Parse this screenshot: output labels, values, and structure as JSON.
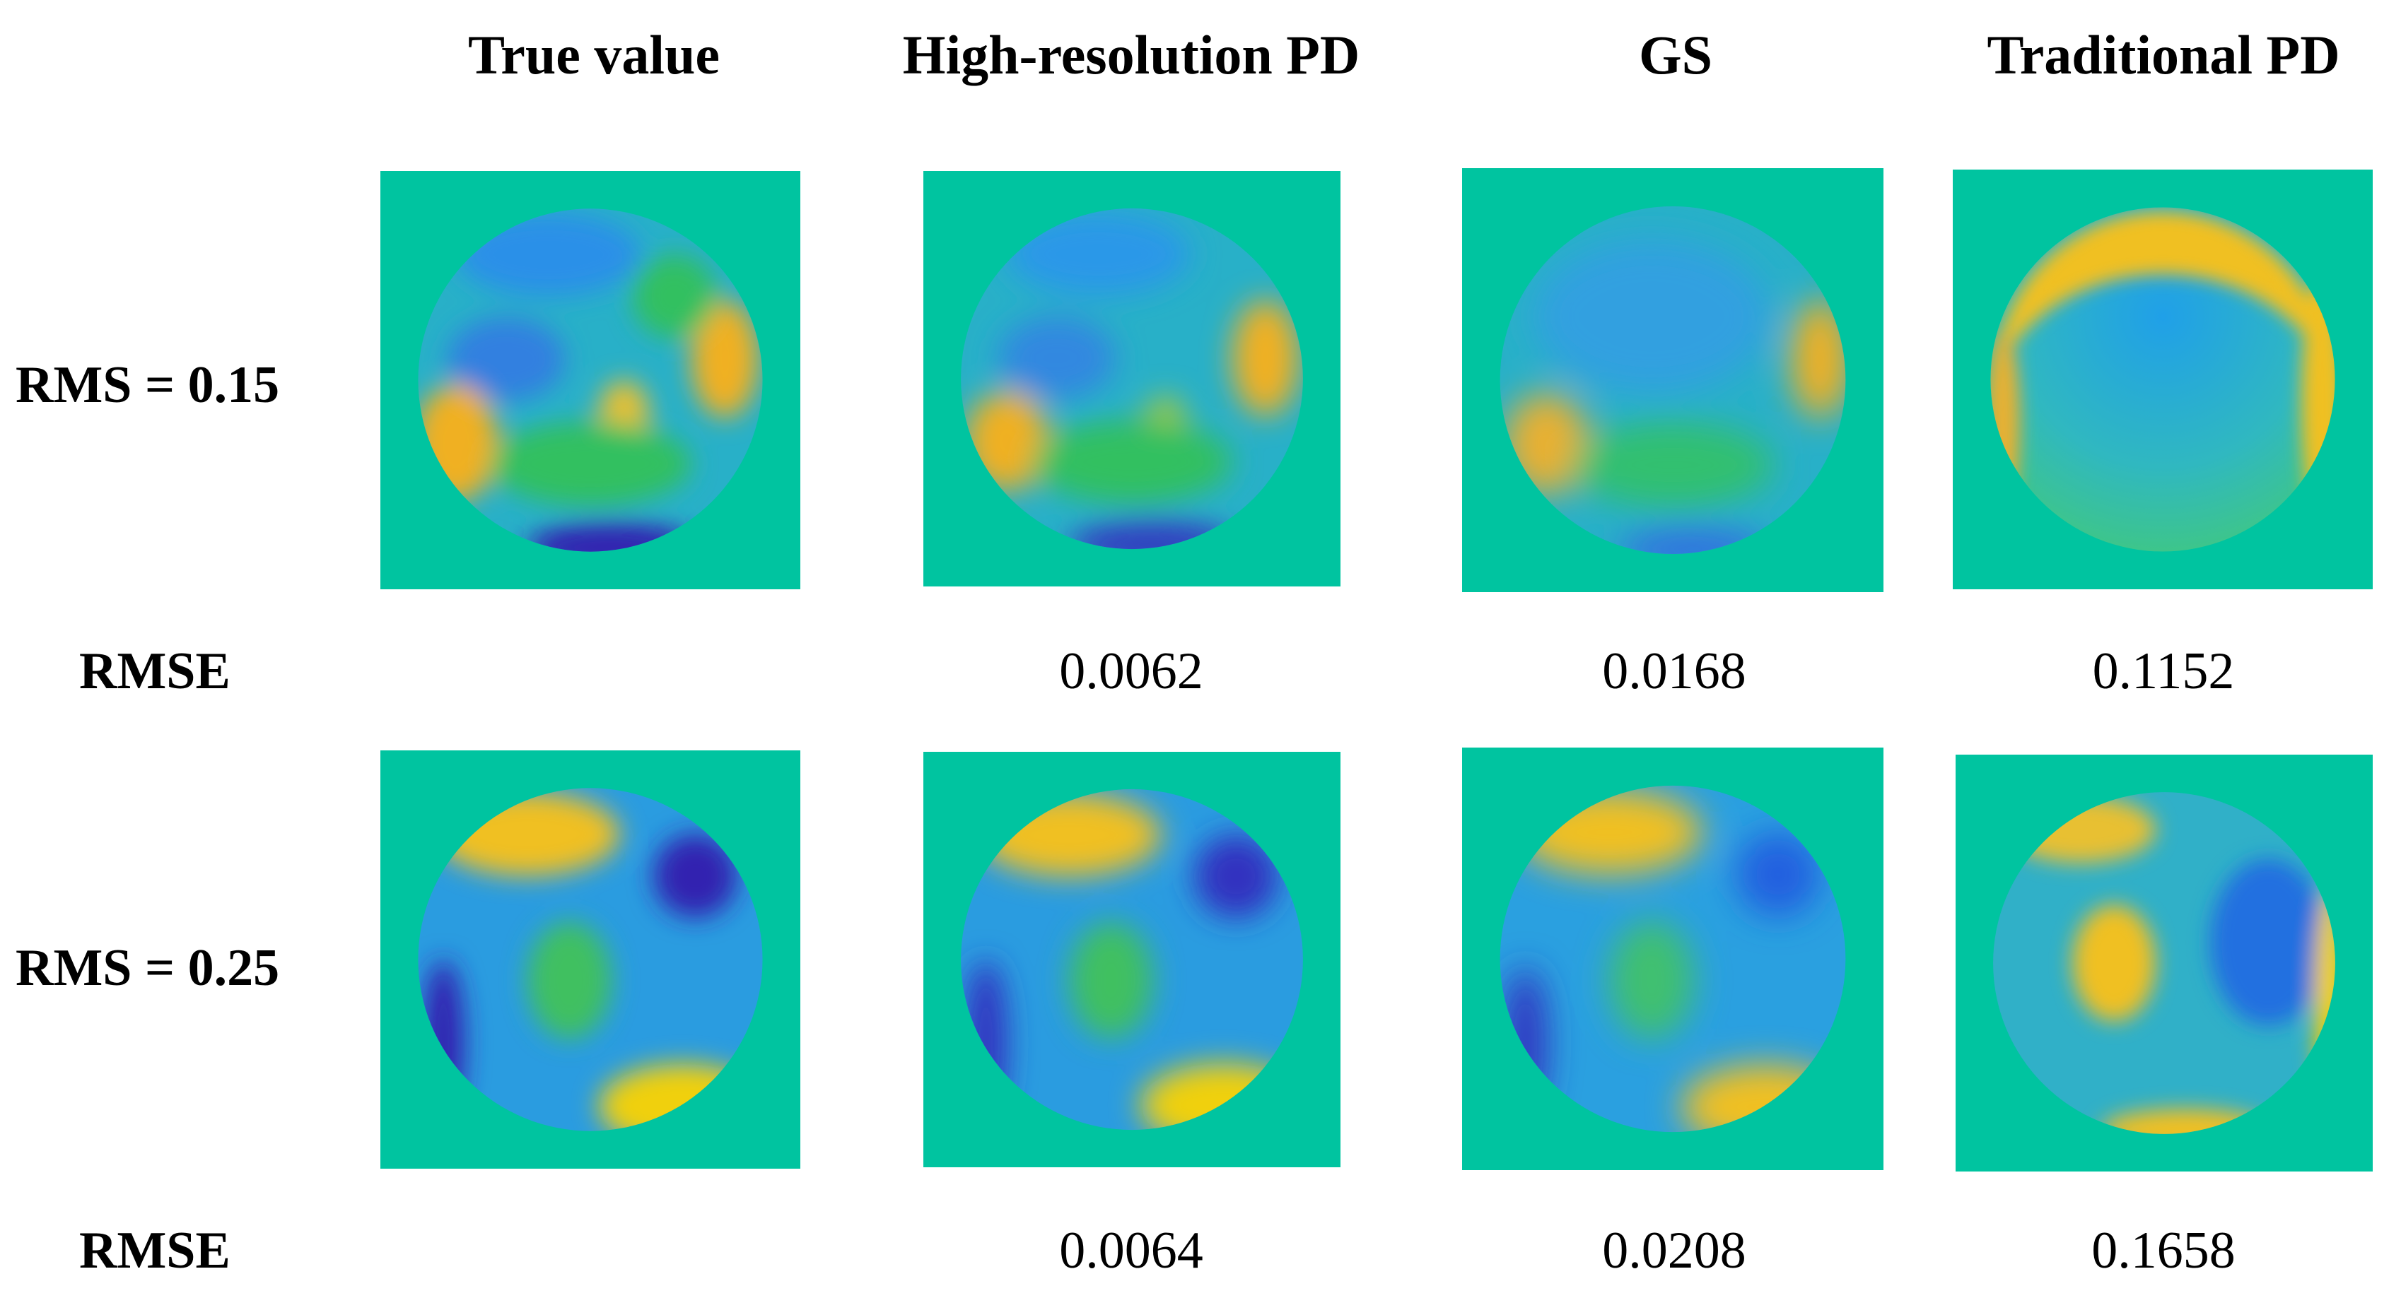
{
  "columns": {
    "true_value": "True value",
    "high_res_pd": "High-resolution PD",
    "gs": "GS",
    "traditional_pd": "Traditional PD"
  },
  "rows": [
    {
      "label": "RMS = 0.15",
      "rmse_label": "RMSE",
      "rmse": {
        "high_res_pd": "0.0062",
        "gs": "0.0168",
        "traditional_pd": "0.1152"
      }
    },
    {
      "label": "RMS = 0.25",
      "rmse_label": "RMSE",
      "rmse": {
        "high_res_pd": "0.0064",
        "gs": "0.0208",
        "traditional_pd": "0.1658"
      }
    }
  ],
  "colors": {
    "background_teal": "#00c4a0",
    "yellow": "#f5d000",
    "orange": "#f0b020",
    "green": "#30c060",
    "cyan": "#20a8d8",
    "blue": "#2070e0",
    "dark_blue": "#3020b0"
  }
}
